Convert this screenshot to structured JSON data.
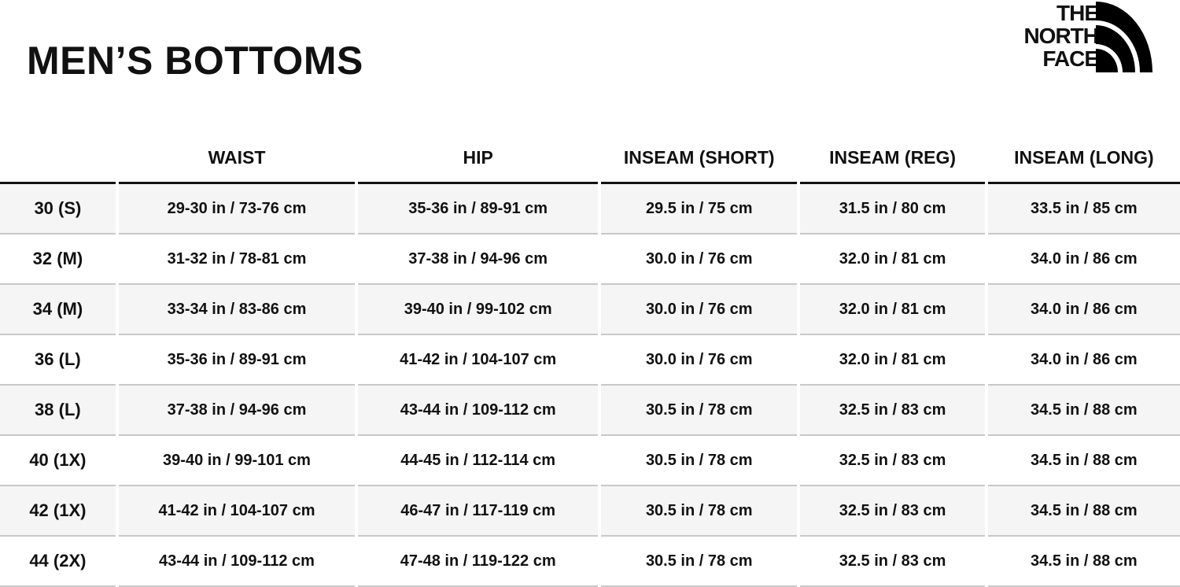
{
  "title": "MEN’S BOTTOMS",
  "logo": {
    "lines": [
      "THE",
      "NORTH",
      "FACE"
    ]
  },
  "table": {
    "headers": [
      "",
      "WAIST",
      "HIP",
      "INSEAM (SHORT)",
      "INSEAM (REG)",
      "INSEAM (LONG)"
    ],
    "rows": [
      [
        "30 (S)",
        "29-30 in / 73-76 cm",
        "35-36 in / 89-91 cm",
        "29.5 in / 75 cm",
        "31.5 in / 80 cm",
        "33.5 in / 85 cm"
      ],
      [
        "32 (M)",
        "31-32 in / 78-81 cm",
        "37-38 in / 94-96 cm",
        "30.0 in / 76 cm",
        "32.0 in / 81 cm",
        "34.0 in / 86 cm"
      ],
      [
        "34 (M)",
        "33-34 in / 83-86 cm",
        "39-40 in / 99-102 cm",
        "30.0 in / 76 cm",
        "32.0 in / 81 cm",
        "34.0 in / 86 cm"
      ],
      [
        "36 (L)",
        "35-36 in / 89-91 cm",
        "41-42 in / 104-107 cm",
        "30.0 in / 76 cm",
        "32.0 in / 81 cm",
        "34.0 in / 86 cm"
      ],
      [
        "38 (L)",
        "37-38 in / 94-96 cm",
        "43-44 in / 109-112 cm",
        "30.5 in / 78 cm",
        "32.5 in / 83 cm",
        "34.5 in / 88 cm"
      ],
      [
        "40 (1X)",
        "39-40 in / 99-101 cm",
        "44-45 in / 112-114 cm",
        "30.5 in / 78 cm",
        "32.5 in / 83 cm",
        "34.5 in / 88 cm"
      ],
      [
        "42 (1X)",
        "41-42 in / 104-107 cm",
        "46-47 in / 117-119 cm",
        "30.5 in / 78 cm",
        "32.5 in / 83 cm",
        "34.5 in / 88 cm"
      ],
      [
        "44 (2X)",
        "43-44 in / 109-112 cm",
        "47-48 in / 119-122 cm",
        "30.5 in / 78 cm",
        "32.5 in / 83 cm",
        "34.5 in / 88 cm"
      ]
    ]
  }
}
